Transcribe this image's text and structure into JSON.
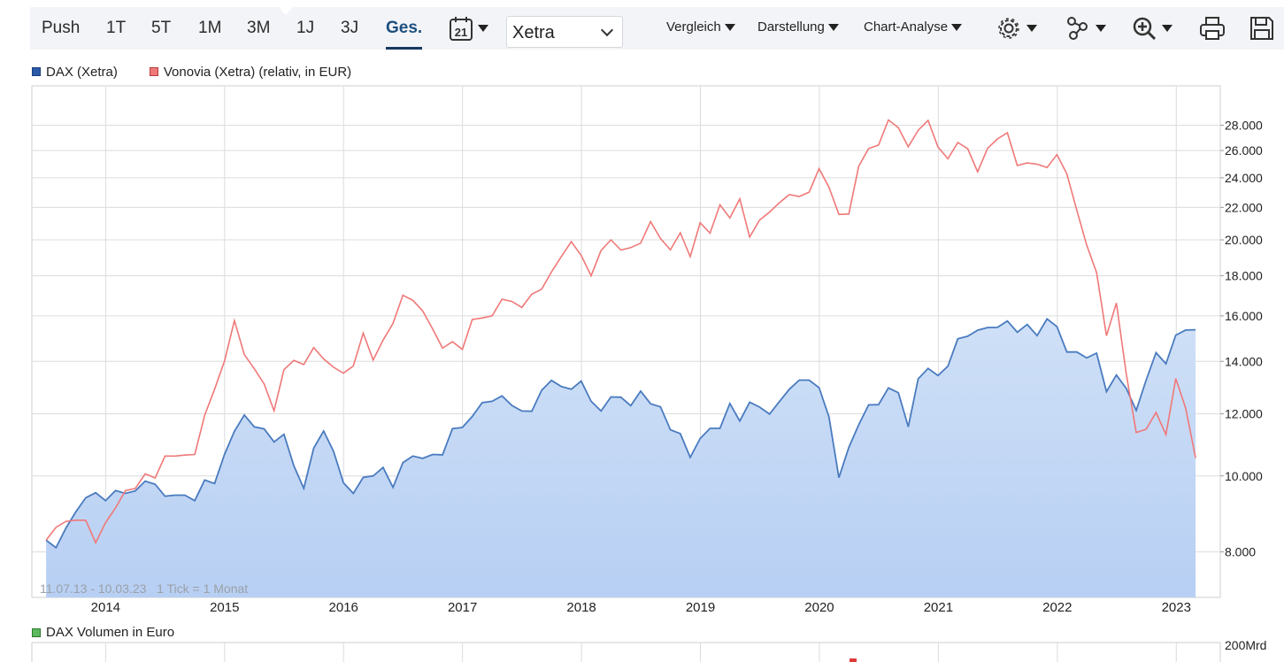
{
  "toolbar": {
    "ranges": [
      "Push",
      "1T",
      "5T",
      "1M",
      "3M",
      "1J",
      "3J",
      "Ges."
    ],
    "active_range": "Ges.",
    "calendar_day": "21",
    "exchange": "Xetra",
    "menus": [
      "Vergleich",
      "Darstellung",
      "Chart-Analyse"
    ]
  },
  "legend": {
    "dax": "DAX (Xetra)",
    "vonovia": "Vonovia (Xetra) (relativ, in EUR)"
  },
  "info_text": "11.07.13 - 10.03.23   1 Tick = 1 Monat",
  "volume": {
    "legend": "DAX Volumen in Euro",
    "axis_label": "200Mrd"
  },
  "colors": {
    "dax_line": "#4a7bbf",
    "dax_fill_top": "#cfe0f7",
    "dax_fill_bottom": "#b7cff3",
    "vonovia_line": "#f07878",
    "grid": "#dcdcdc",
    "toolbar_bg": "#f3f4f7",
    "active": "#17395e"
  },
  "chart_data": {
    "type": "line",
    "scale": "log",
    "x_start": 2013.5,
    "x_step": 0.0833,
    "xlim": [
      2013.38,
      2023.37
    ],
    "ylim": [
      7000,
      30000
    ],
    "y_ticks": [
      8000,
      10000,
      12000,
      14000,
      16000,
      18000,
      20000,
      22000,
      24000,
      26000,
      28000
    ],
    "y_tick_labels": [
      "8.000",
      "10.000",
      "12.000",
      "14.000",
      "16.000",
      "18.000",
      "20.000",
      "22.000",
      "24.000",
      "26.000",
      "28.000"
    ],
    "x_ticks": [
      2014,
      2015,
      2016,
      2017,
      2018,
      2019,
      2020,
      2021,
      2022,
      2023
    ],
    "x_tick_labels": [
      "2014",
      "2015",
      "2016",
      "2017",
      "2018",
      "2019",
      "2020",
      "2021",
      "2022",
      "2023"
    ],
    "series": [
      {
        "name": "DAX (Xetra)",
        "values": [
          8280,
          8100,
          8580,
          9000,
          9380,
          9520,
          9300,
          9580,
          9500,
          9570,
          9850,
          9760,
          9420,
          9450,
          9450,
          9300,
          9880,
          9780,
          10650,
          11400,
          11960,
          11550,
          11480,
          11050,
          11300,
          10300,
          9640,
          10850,
          11410,
          10750,
          9800,
          9500,
          9960,
          10000,
          10250,
          9670,
          10400,
          10600,
          10530,
          10650,
          10640,
          11490,
          11530,
          11910,
          12400,
          12450,
          12650,
          12300,
          12100,
          12090,
          12860,
          13240,
          13000,
          12900,
          13210,
          12450,
          12100,
          12610,
          12600,
          12290,
          12830,
          12360,
          12250,
          11450,
          11320,
          10560,
          11160,
          11500,
          11500,
          12370,
          11750,
          12420,
          12240,
          11990,
          12440,
          12900,
          13250,
          13250,
          12960,
          11890,
          9950,
          10870,
          11620,
          12320,
          12330,
          12950,
          12770,
          11550,
          13300,
          13710,
          13430,
          13800,
          14960,
          15070,
          15340,
          15460,
          15470,
          15760,
          15250,
          15600,
          15100,
          15860,
          15500,
          14390,
          14390,
          14140,
          14340,
          12810,
          13450,
          12930,
          12120,
          13250,
          14360,
          13900,
          15120,
          15350,
          15360
        ]
      },
      {
        "name": "Vonovia (Xetra) (relativ, in EUR)",
        "values": [
          8280,
          8600,
          8750,
          8780,
          8780,
          8220,
          8720,
          9100,
          9580,
          9640,
          10060,
          9940,
          10600,
          10600,
          10630,
          10650,
          11950,
          12900,
          14010,
          15780,
          14280,
          13700,
          13100,
          12110,
          13660,
          14040,
          13870,
          14580,
          14100,
          13760,
          13520,
          13810,
          15210,
          14050,
          14900,
          15650,
          17000,
          16750,
          16230,
          15400,
          14550,
          14830,
          14500,
          15830,
          15900,
          16000,
          16800,
          16690,
          16400,
          17050,
          17300,
          18200,
          19050,
          19900,
          19100,
          18000,
          19380,
          20000,
          19410,
          19550,
          19810,
          21100,
          20080,
          19420,
          20420,
          19040,
          21030,
          20400,
          22170,
          21330,
          22560,
          20170,
          21200,
          21700,
          22300,
          22850,
          22720,
          23010,
          24650,
          23340,
          21550,
          21580,
          24830,
          26150,
          26420,
          28440,
          27800,
          26280,
          27590,
          28400,
          26260,
          25380,
          26620,
          26130,
          24420,
          26170,
          26900,
          27390,
          24880,
          25070,
          24980,
          24730,
          25690,
          24280,
          21830,
          19700,
          18170,
          15090,
          16620,
          13480,
          11360,
          11470,
          12050,
          11290,
          13310,
          12200,
          10540
        ]
      }
    ]
  }
}
